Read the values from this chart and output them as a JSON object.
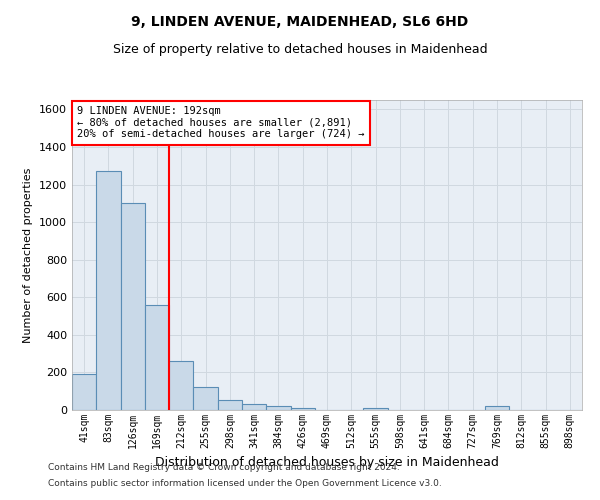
{
  "title1": "9, LINDEN AVENUE, MAIDENHEAD, SL6 6HD",
  "title2": "Size of property relative to detached houses in Maidenhead",
  "xlabel": "Distribution of detached houses by size in Maidenhead",
  "ylabel": "Number of detached properties",
  "footer1": "Contains HM Land Registry data © Crown copyright and database right 2024.",
  "footer2": "Contains public sector information licensed under the Open Government Licence v3.0.",
  "categories": [
    "41sqm",
    "83sqm",
    "126sqm",
    "169sqm",
    "212sqm",
    "255sqm",
    "298sqm",
    "341sqm",
    "384sqm",
    "426sqm",
    "469sqm",
    "512sqm",
    "555sqm",
    "598sqm",
    "641sqm",
    "684sqm",
    "727sqm",
    "769sqm",
    "812sqm",
    "855sqm",
    "898sqm"
  ],
  "values": [
    190,
    1270,
    1100,
    560,
    260,
    120,
    55,
    30,
    20,
    10,
    0,
    0,
    10,
    0,
    0,
    0,
    0,
    20,
    0,
    0,
    0
  ],
  "bar_color": "#c9d9e8",
  "bar_edge_color": "#5a8db5",
  "grid_color": "#d0d8e0",
  "vline_x": 3.5,
  "vline_color": "red",
  "annotation_line1": "9 LINDEN AVENUE: 192sqm",
  "annotation_line2": "← 80% of detached houses are smaller (2,891)",
  "annotation_line3": "20% of semi-detached houses are larger (724) →",
  "ylim": [
    0,
    1650
  ],
  "yticks": [
    0,
    200,
    400,
    600,
    800,
    1000,
    1200,
    1400,
    1600
  ],
  "background_color": "#e8eef5"
}
